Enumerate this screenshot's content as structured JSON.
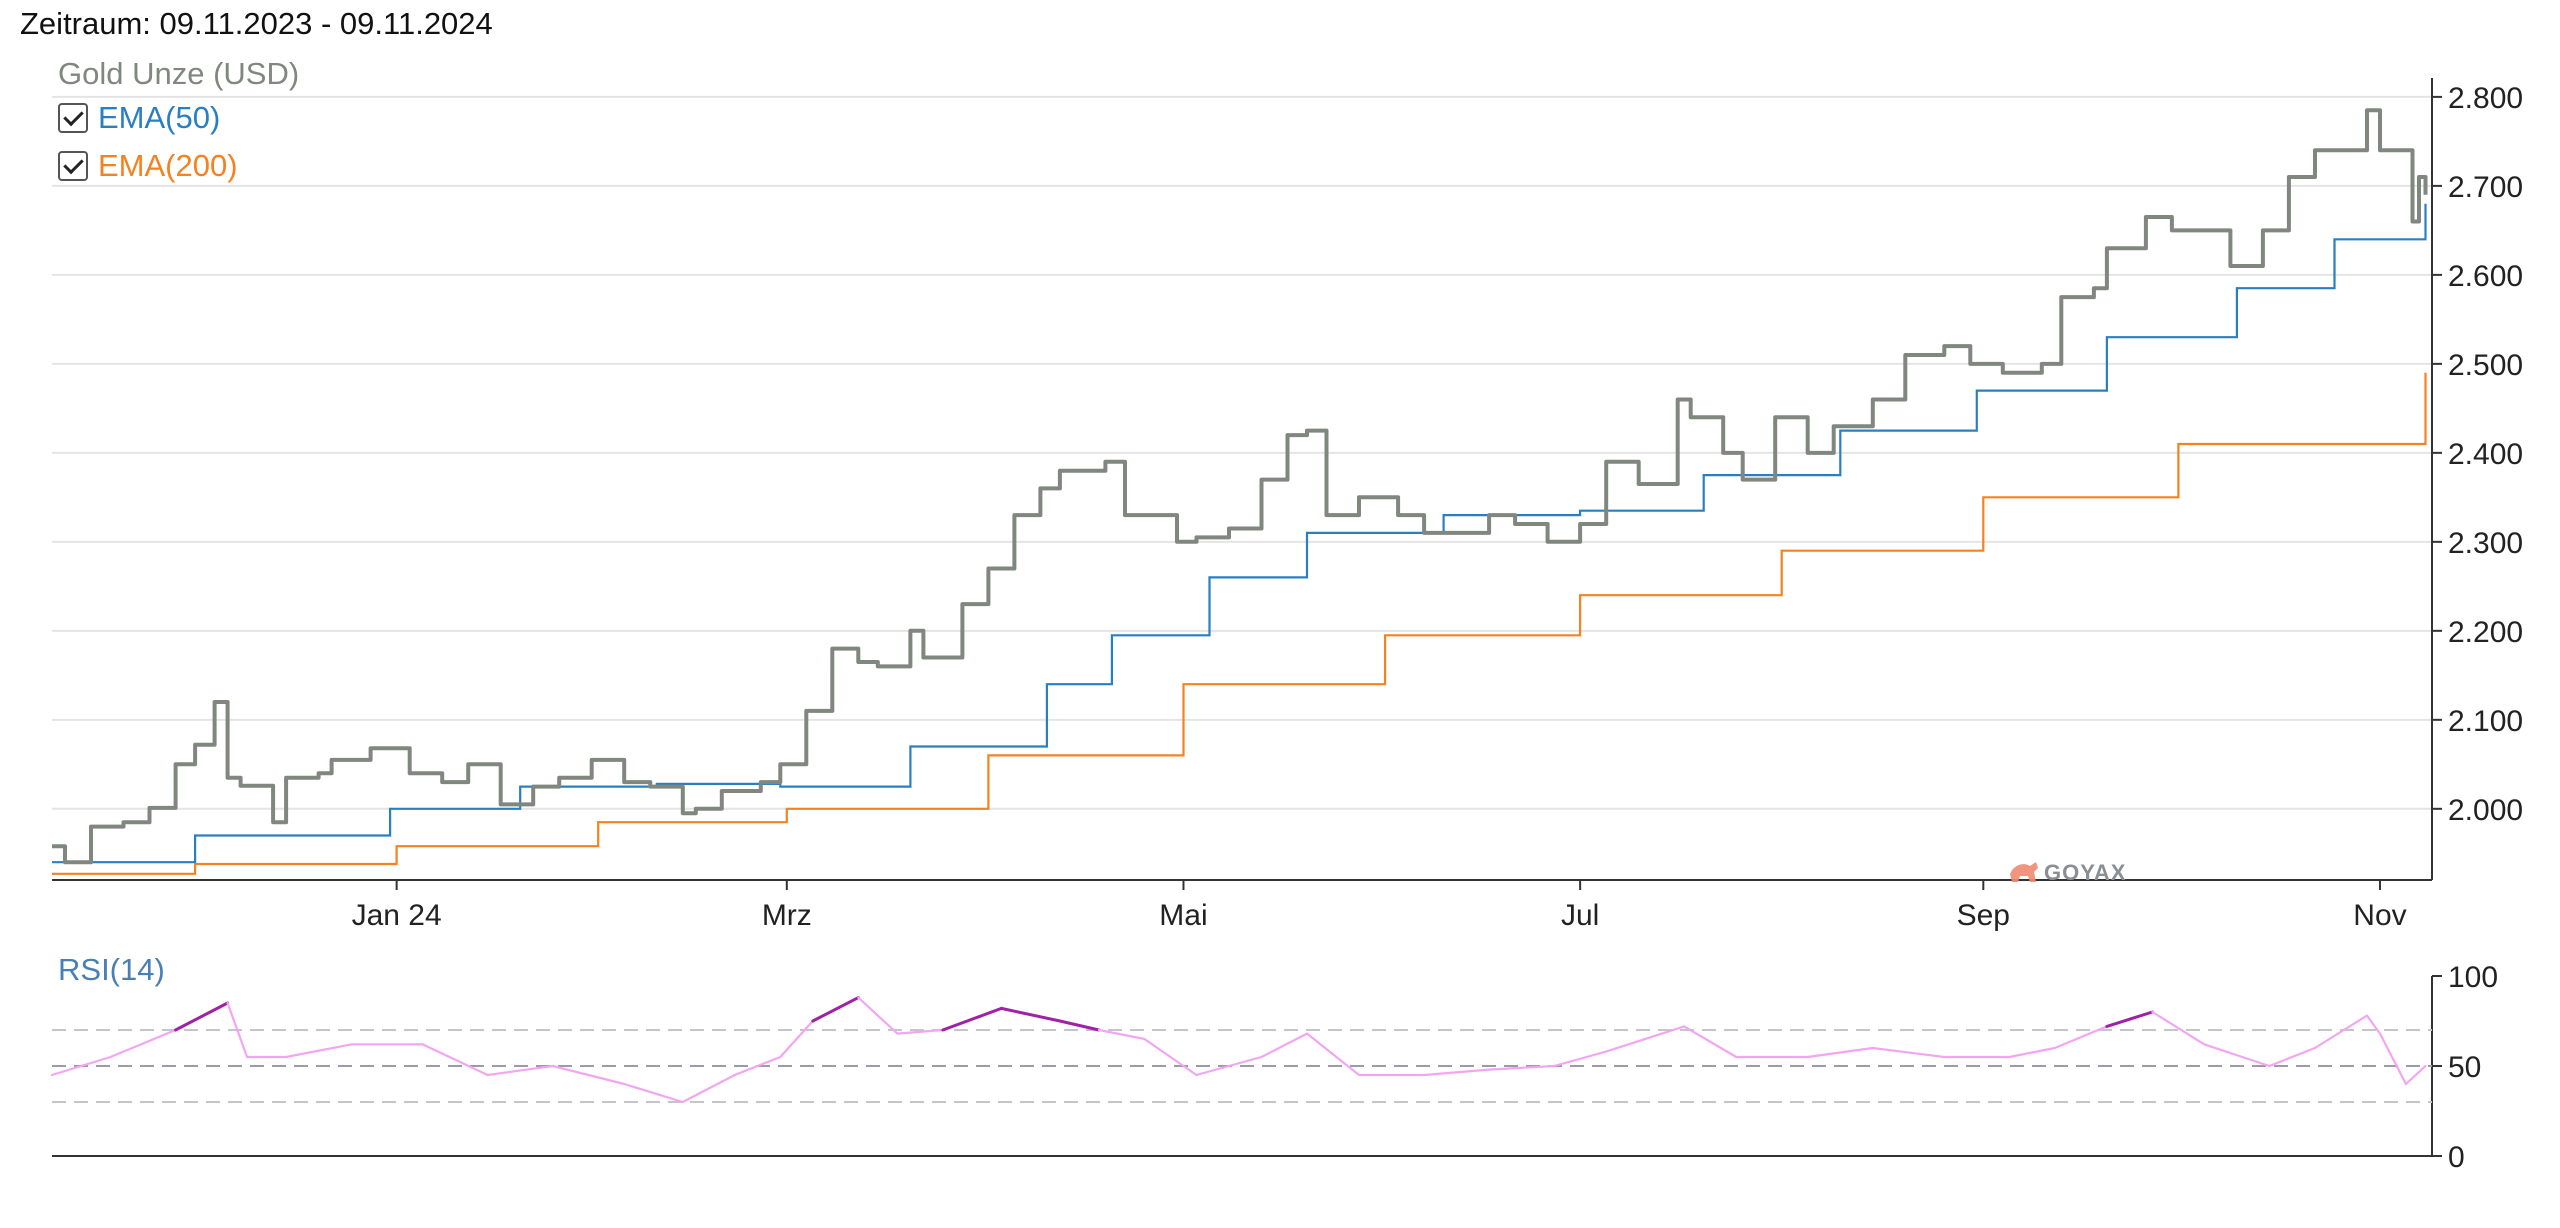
{
  "header": {
    "title": "Zeitraum: 09.11.2023 - 09.11.2024"
  },
  "legend": {
    "main_label": "Gold Unze (USD)",
    "ema50_label": "EMA(50)",
    "ema200_label": "EMA(200)",
    "rsi_label": "RSI(14)"
  },
  "watermark": "GOYAX",
  "colors": {
    "price": "#7f877f",
    "ema50": "#2a7fc1",
    "ema200": "#f58220",
    "rsi": "#f2a6f2",
    "rsi_high": "#a020a8",
    "grid": "#e4e4e4"
  },
  "chart_data": [
    {
      "type": "line",
      "title": "Gold Unze (USD)",
      "x_range": [
        "2023-11-09",
        "2024-11-09"
      ],
      "x_ticks": [
        {
          "label": "Jan 24",
          "date": "2024-01-01"
        },
        {
          "label": "Mrz",
          "date": "2024-03-01"
        },
        {
          "label": "Mai",
          "date": "2024-05-01"
        },
        {
          "label": "Jul",
          "date": "2024-07-01"
        },
        {
          "label": "Sep",
          "date": "2024-09-01"
        },
        {
          "label": "Nov",
          "date": "2024-11-01"
        }
      ],
      "y_ticks": [
        "2.000",
        "2.100",
        "2.200",
        "2.300",
        "2.400",
        "2.500",
        "2.600",
        "2.700",
        "2.800"
      ],
      "y_tick_values": [
        2000,
        2100,
        2200,
        2300,
        2400,
        2500,
        2600,
        2700,
        2800
      ],
      "ylim": [
        1920,
        2810
      ],
      "grid": true,
      "series": [
        {
          "name": "Gold Unze (USD)",
          "x": [
            "2023-11-09",
            "2023-11-11",
            "2023-11-15",
            "2023-11-20",
            "2023-11-24",
            "2023-11-28",
            "2023-12-01",
            "2023-12-04",
            "2023-12-06",
            "2023-12-08",
            "2023-12-13",
            "2023-12-15",
            "2023-12-20",
            "2023-12-22",
            "2023-12-28",
            "2024-01-03",
            "2024-01-08",
            "2024-01-12",
            "2024-01-17",
            "2024-01-22",
            "2024-01-26",
            "2024-01-31",
            "2024-02-05",
            "2024-02-09",
            "2024-02-14",
            "2024-02-16",
            "2024-02-20",
            "2024-02-26",
            "2024-02-29",
            "2024-03-04",
            "2024-03-08",
            "2024-03-12",
            "2024-03-15",
            "2024-03-20",
            "2024-03-22",
            "2024-03-28",
            "2024-04-01",
            "2024-04-05",
            "2024-04-09",
            "2024-04-12",
            "2024-04-15",
            "2024-04-19",
            "2024-04-22",
            "2024-04-26",
            "2024-04-30",
            "2024-05-03",
            "2024-05-08",
            "2024-05-13",
            "2024-05-17",
            "2024-05-20",
            "2024-05-23",
            "2024-05-28",
            "2024-06-03",
            "2024-06-07",
            "2024-06-12",
            "2024-06-17",
            "2024-06-21",
            "2024-06-26",
            "2024-07-01",
            "2024-07-05",
            "2024-07-10",
            "2024-07-16",
            "2024-07-18",
            "2024-07-23",
            "2024-07-26",
            "2024-07-31",
            "2024-08-05",
            "2024-08-09",
            "2024-08-15",
            "2024-08-20",
            "2024-08-26",
            "2024-08-30",
            "2024-09-04",
            "2024-09-10",
            "2024-09-13",
            "2024-09-18",
            "2024-09-20",
            "2024-09-26",
            "2024-09-30",
            "2024-10-04",
            "2024-10-09",
            "2024-10-14",
            "2024-10-18",
            "2024-10-22",
            "2024-10-25",
            "2024-10-30",
            "2024-11-01",
            "2024-11-05",
            "2024-11-06",
            "2024-11-07",
            "2024-11-08"
          ],
          "y": [
            1958,
            1940,
            1980,
            1985,
            2001,
            2050,
            2072,
            2120,
            2035,
            2026,
            1985,
            2035,
            2040,
            2055,
            2068,
            2040,
            2030,
            2050,
            2005,
            2025,
            2035,
            2055,
            2030,
            2025,
            1995,
            2000,
            2020,
            2030,
            2050,
            2110,
            2180,
            2165,
            2160,
            2200,
            2170,
            2230,
            2270,
            2330,
            2360,
            2380,
            2380,
            2390,
            2330,
            2330,
            2300,
            2305,
            2315,
            2370,
            2420,
            2425,
            2330,
            2350,
            2330,
            2310,
            2310,
            2330,
            2320,
            2300,
            2320,
            2390,
            2365,
            2460,
            2440,
            2400,
            2370,
            2440,
            2400,
            2430,
            2460,
            2510,
            2520,
            2500,
            2490,
            2500,
            2575,
            2585,
            2630,
            2665,
            2650,
            2650,
            2610,
            2650,
            2710,
            2740,
            2740,
            2785,
            2740,
            2740,
            2660,
            2710,
            2690
          ]
        },
        {
          "name": "EMA(50)",
          "x": [
            "2023-11-09",
            "2023-12-01",
            "2023-12-31",
            "2024-01-20",
            "2024-02-10",
            "2024-02-29",
            "2024-03-20",
            "2024-04-10",
            "2024-04-20",
            "2024-05-05",
            "2024-05-20",
            "2024-06-10",
            "2024-07-01",
            "2024-07-20",
            "2024-08-10",
            "2024-08-31",
            "2024-09-20",
            "2024-10-10",
            "2024-10-25",
            "2024-11-08"
          ],
          "y": [
            1940,
            1970,
            2000,
            2025,
            2028,
            2025,
            2070,
            2140,
            2195,
            2260,
            2310,
            2330,
            2335,
            2375,
            2425,
            2470,
            2530,
            2585,
            2640,
            2680
          ]
        },
        {
          "name": "EMA(200)",
          "x": [
            "2023-11-09",
            "2023-12-01",
            "2024-01-01",
            "2024-02-01",
            "2024-03-01",
            "2024-04-01",
            "2024-05-01",
            "2024-06-01",
            "2024-07-01",
            "2024-08-01",
            "2024-09-01",
            "2024-10-01",
            "2024-11-08"
          ],
          "y": [
            1927,
            1938,
            1958,
            1985,
            2000,
            2060,
            2140,
            2195,
            2240,
            2290,
            2350,
            2410,
            2490
          ]
        }
      ]
    },
    {
      "type": "line",
      "title": "RSI(14)",
      "x_range": [
        "2023-11-09",
        "2024-11-09"
      ],
      "y_ticks": [
        "0",
        "50",
        "100"
      ],
      "y_tick_values": [
        0,
        50,
        100
      ],
      "ylim": [
        0,
        100
      ],
      "reference_lines": [
        30,
        50,
        70
      ],
      "overbought_threshold": 70,
      "series": [
        {
          "name": "RSI(14)",
          "x": [
            "2023-11-09",
            "2023-11-18",
            "2023-11-28",
            "2023-12-06",
            "2023-12-09",
            "2023-12-15",
            "2023-12-25",
            "2024-01-05",
            "2024-01-15",
            "2024-01-25",
            "2024-02-05",
            "2024-02-14",
            "2024-02-22",
            "2024-02-29",
            "2024-03-05",
            "2024-03-12",
            "2024-03-18",
            "2024-03-25",
            "2024-04-03",
            "2024-04-12",
            "2024-04-18",
            "2024-04-25",
            "2024-05-03",
            "2024-05-13",
            "2024-05-20",
            "2024-05-28",
            "2024-06-07",
            "2024-06-17",
            "2024-06-27",
            "2024-07-05",
            "2024-07-17",
            "2024-07-25",
            "2024-08-05",
            "2024-08-15",
            "2024-08-26",
            "2024-09-05",
            "2024-09-12",
            "2024-09-20",
            "2024-09-27",
            "2024-10-05",
            "2024-10-15",
            "2024-10-22",
            "2024-10-30",
            "2024-11-01",
            "2024-11-05",
            "2024-11-08"
          ],
          "y": [
            45,
            55,
            70,
            85,
            55,
            55,
            62,
            62,
            45,
            50,
            40,
            30,
            45,
            55,
            75,
            88,
            68,
            70,
            82,
            75,
            70,
            65,
            45,
            55,
            68,
            45,
            45,
            48,
            50,
            58,
            72,
            55,
            55,
            60,
            55,
            55,
            60,
            72,
            80,
            62,
            50,
            60,
            78,
            68,
            40,
            50
          ]
        }
      ]
    }
  ]
}
